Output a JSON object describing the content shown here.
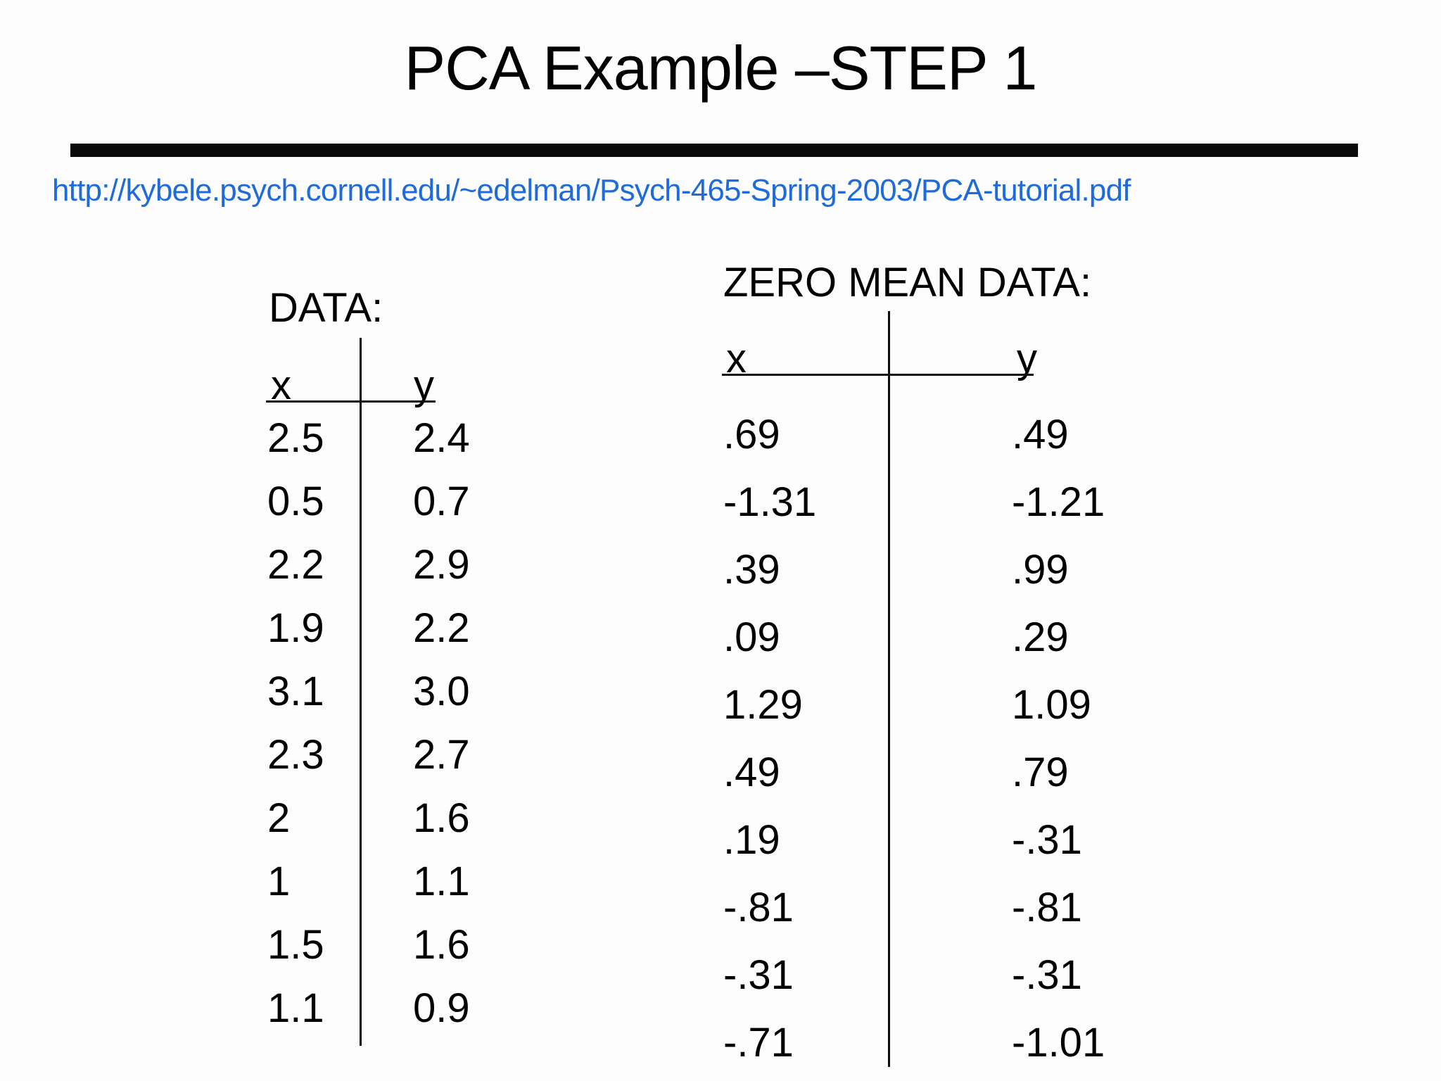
{
  "slide": {
    "title": "PCA Example –STEP 1",
    "source_link": "http://kybele.psych.cornell.edu/~edelman/Psych-465-Spring-2003/PCA-tutorial.pdf"
  },
  "data_table": {
    "heading": "DATA:",
    "columns": {
      "x": "x",
      "y": "y"
    },
    "rows": [
      [
        "2.5",
        "2.4"
      ],
      [
        "0.5",
        "0.7"
      ],
      [
        "2.2",
        "2.9"
      ],
      [
        "1.9",
        "2.2"
      ],
      [
        "3.1",
        "3.0"
      ],
      [
        "2.3",
        "2.7"
      ],
      [
        "2",
        "1.6"
      ],
      [
        "1",
        "1.1"
      ],
      [
        "1.5",
        "1.6"
      ],
      [
        "1.1",
        "0.9"
      ]
    ]
  },
  "zero_mean_table": {
    "heading": "ZERO MEAN DATA:",
    "columns": {
      "x": "x",
      "y": "y"
    },
    "rows": [
      [
        ".69",
        ".49"
      ],
      [
        "-1.31",
        "-1.21"
      ],
      [
        ".39",
        ".99"
      ],
      [
        ".09",
        ".29"
      ],
      [
        "1.29",
        "1.09"
      ],
      [
        ".49",
        ".79"
      ],
      [
        ".19",
        "-.31"
      ],
      [
        "-.81",
        "-.81"
      ],
      [
        "-.31",
        "-.31"
      ],
      [
        "-.71",
        "-1.01"
      ]
    ]
  },
  "colors": {
    "background": "#fdfdfd",
    "text": "#000000",
    "link": "#1f6bd9",
    "divider": "#0a0a0a"
  }
}
